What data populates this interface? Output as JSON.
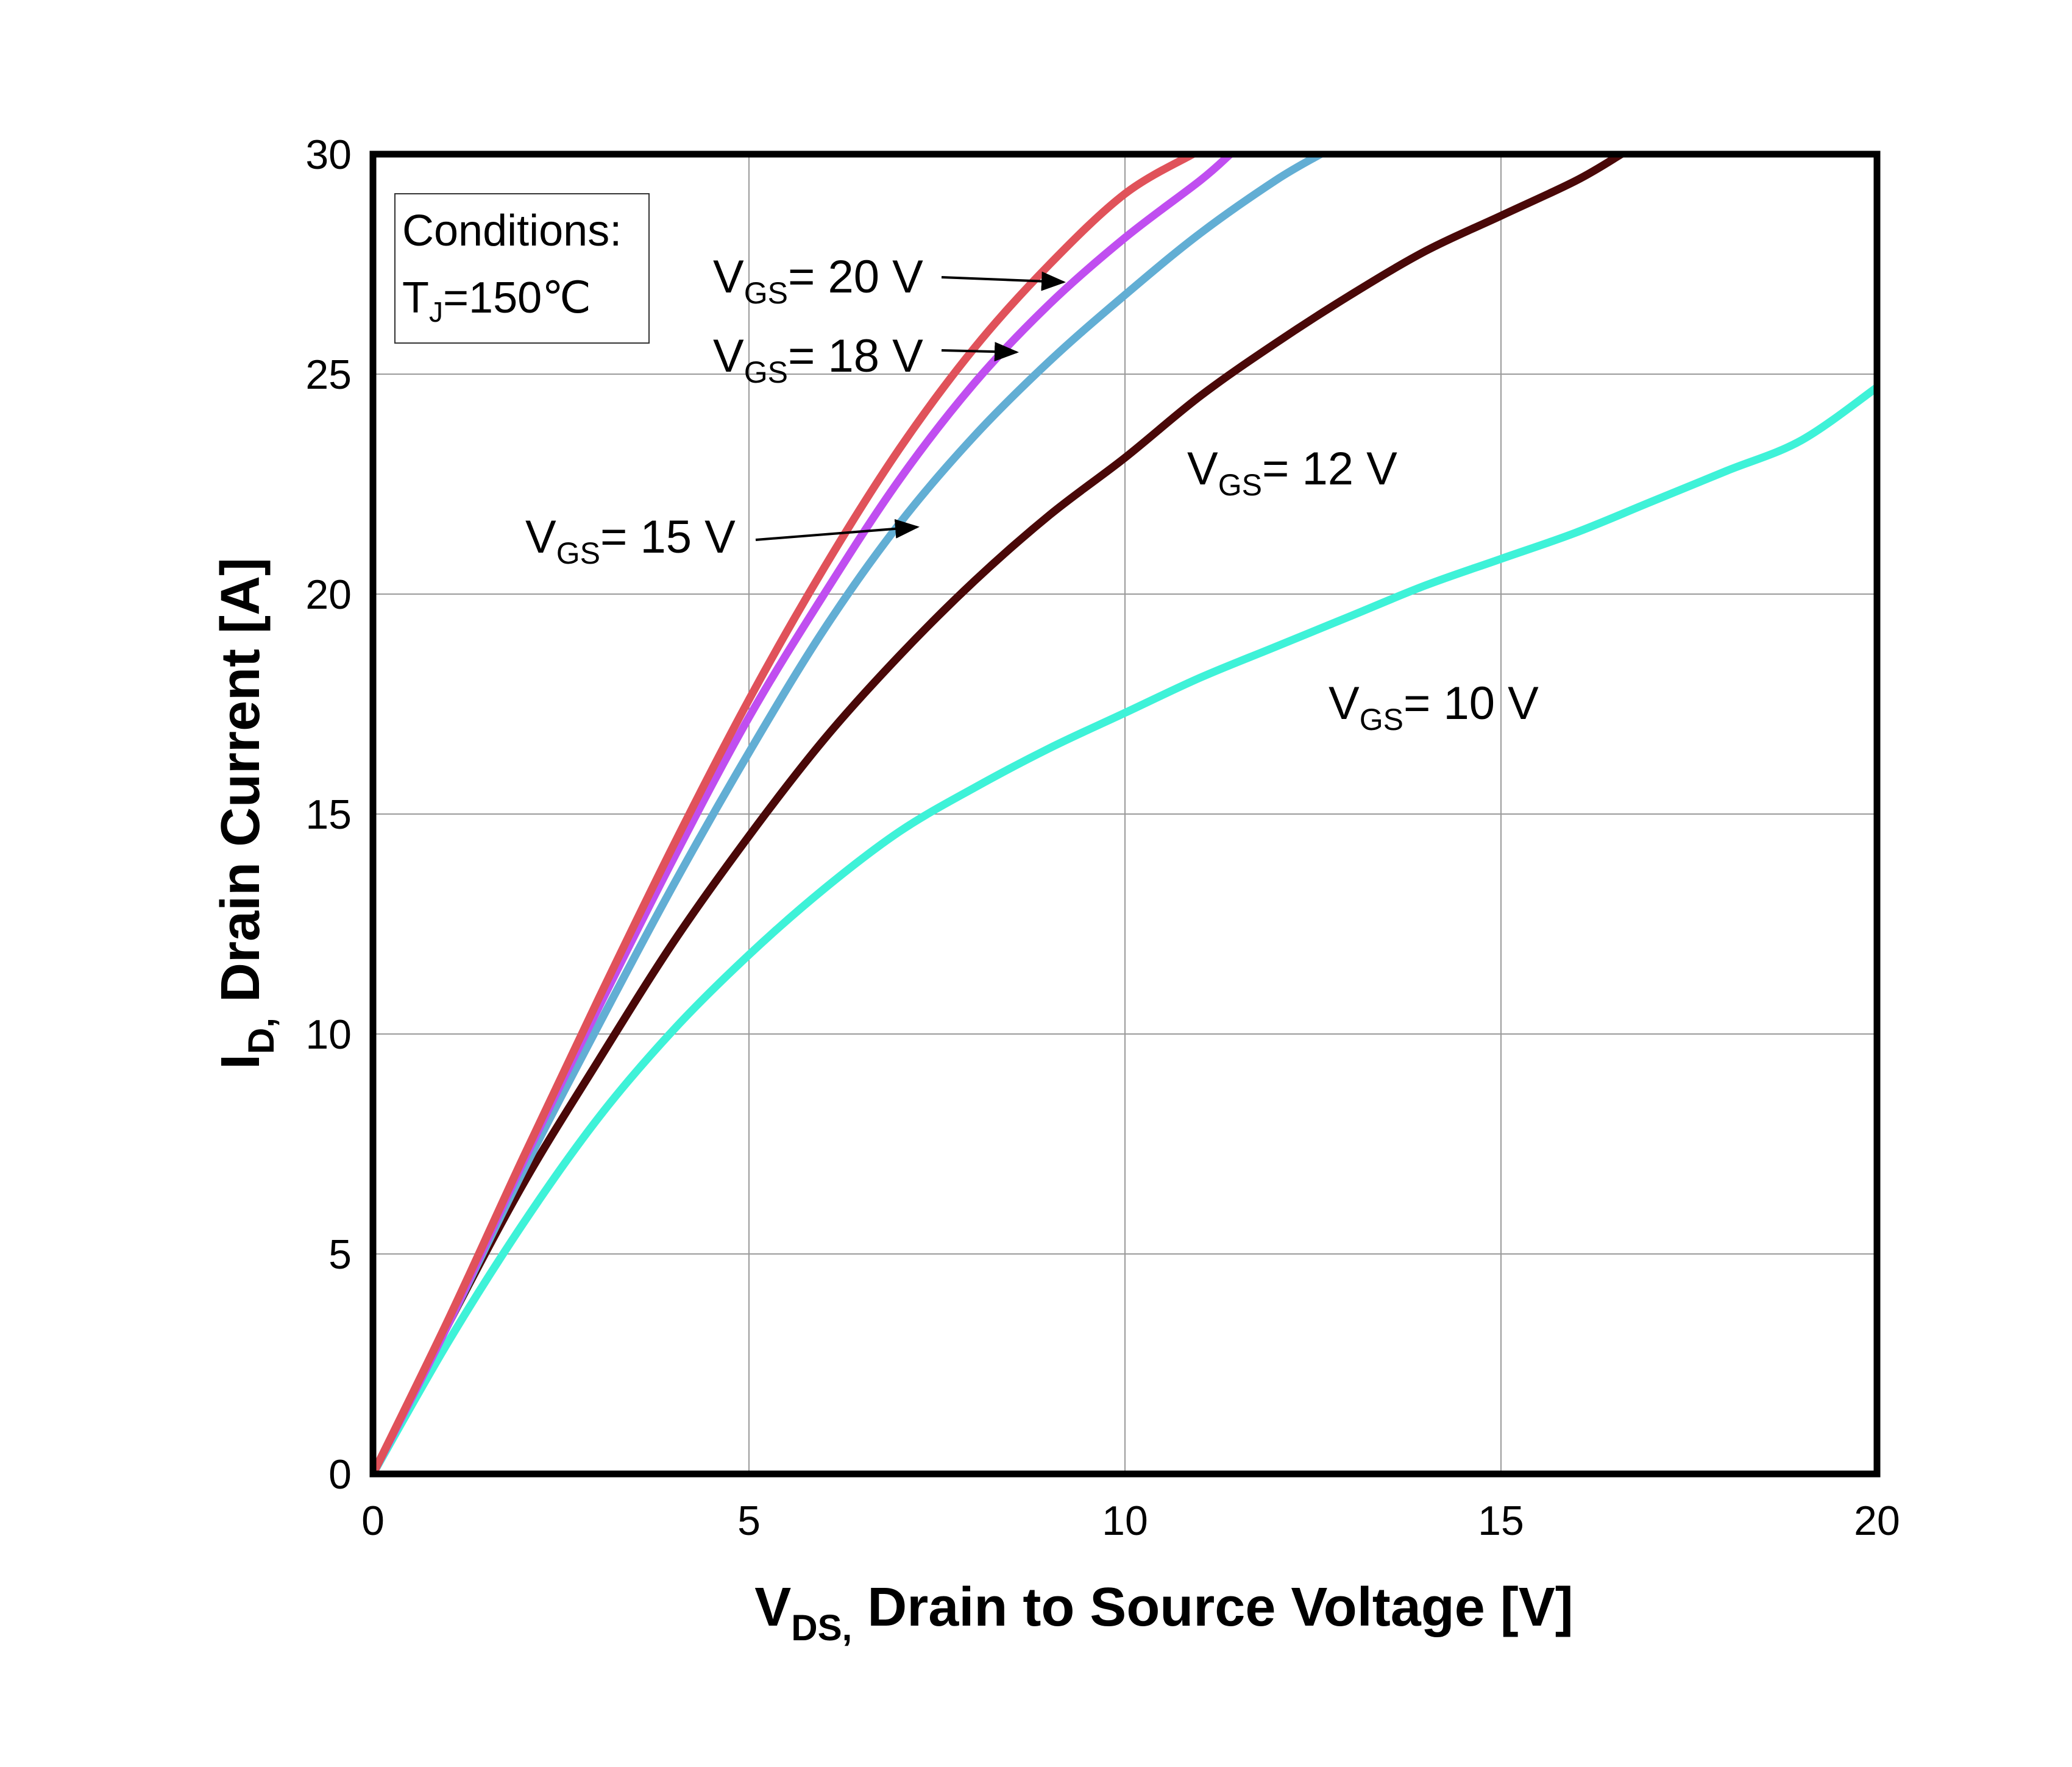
{
  "chart_data": {
    "type": "line",
    "title": "",
    "xlabel": {
      "main": "V",
      "sub": "DS,",
      "rest": " Drain to Source Voltage [V]"
    },
    "ylabel": {
      "main": "I",
      "sub": "D,",
      "rest": " Drain Current [A]"
    },
    "xlim": [
      0,
      20
    ],
    "ylim": [
      0,
      30
    ],
    "xticks": [
      0,
      5,
      10,
      15,
      20
    ],
    "yticks": [
      0,
      5,
      10,
      15,
      20,
      25,
      30
    ],
    "grid": true,
    "conditions": {
      "line1": "Conditions:",
      "tj_main": "T",
      "tj_sub": "J",
      "tj_rest": "=150℃"
    },
    "series": [
      {
        "name": "VGS = 20 V",
        "label": {
          "main": "V",
          "sub": "GS",
          "rest": "= 20 V"
        },
        "color": "#e0525a",
        "x": [
          0,
          1,
          2,
          3,
          4,
          5,
          6,
          7,
          8,
          9,
          10,
          10.9
        ],
        "y": [
          0,
          3.5,
          7.2,
          10.8,
          14.3,
          17.6,
          20.6,
          23.3,
          25.6,
          27.5,
          29.1,
          30
        ]
      },
      {
        "name": "VGS = 18 V",
        "label": {
          "main": "V",
          "sub": "GS",
          "rest": "= 18 V"
        },
        "color": "#c04ef0",
        "x": [
          0,
          1,
          2,
          3,
          4,
          5,
          6,
          7,
          8,
          9,
          10,
          11,
          11.4
        ],
        "y": [
          0,
          3.4,
          7.1,
          10.6,
          14.0,
          17.2,
          20.0,
          22.6,
          24.8,
          26.6,
          28.1,
          29.4,
          30
        ]
      },
      {
        "name": "VGS = 15 V",
        "label": {
          "main": "V",
          "sub": "GS",
          "rest": "= 15 V"
        },
        "color": "#62aed4",
        "x": [
          0,
          1,
          2,
          3,
          4,
          5,
          6,
          7,
          8,
          9,
          10,
          11,
          12,
          12.6
        ],
        "y": [
          0,
          3.4,
          6.9,
          10.2,
          13.4,
          16.4,
          19.2,
          21.6,
          23.6,
          25.3,
          26.8,
          28.2,
          29.4,
          30
        ]
      },
      {
        "name": "VGS = 12 V",
        "label": {
          "main": "V",
          "sub": "GS",
          "rest": "= 12 V"
        },
        "color": "#4a0808",
        "x": [
          0,
          1,
          2,
          3,
          4,
          5,
          6,
          7,
          8,
          9,
          10,
          11,
          12,
          13,
          14,
          15,
          16,
          16.6
        ],
        "y": [
          0,
          3.4,
          6.6,
          9.4,
          12.1,
          14.5,
          16.7,
          18.6,
          20.3,
          21.8,
          23.1,
          24.5,
          25.7,
          26.8,
          27.8,
          28.6,
          29.4,
          30
        ]
      },
      {
        "name": "VGS = 10 V",
        "label": {
          "main": "V",
          "sub": "GS",
          "rest": "= 10 V"
        },
        "color": "#3ef2d8",
        "x": [
          0,
          1,
          2,
          3,
          4,
          5,
          6,
          7,
          8,
          9,
          10,
          11,
          12,
          13,
          14,
          15,
          16,
          17,
          18,
          19,
          20
        ],
        "y": [
          0,
          3.0,
          5.7,
          8.1,
          10.1,
          11.8,
          13.3,
          14.6,
          15.6,
          16.5,
          17.3,
          18.1,
          18.8,
          19.5,
          20.2,
          20.8,
          21.4,
          22.1,
          22.8,
          23.5,
          24.7
        ]
      }
    ]
  }
}
